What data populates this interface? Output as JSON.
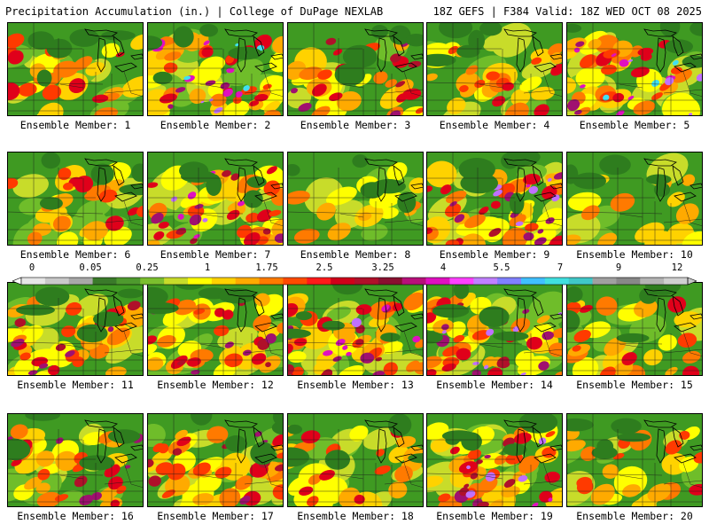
{
  "header": {
    "title": "Precipitation Accumulation (in.) | College of DuPage NEXLAB",
    "run_info": "18Z GEFS | F384 Valid: 18Z WED OCT 08 2025"
  },
  "panels": [
    {
      "label": "Ensemble Member: 1",
      "seed": 11,
      "intensity": 0.95
    },
    {
      "label": "Ensemble Member: 2",
      "seed": 23,
      "intensity": 1.55
    },
    {
      "label": "Ensemble Member: 3",
      "seed": 37,
      "intensity": 1.05
    },
    {
      "label": "Ensemble Member: 4",
      "seed": 41,
      "intensity": 0.95
    },
    {
      "label": "Ensemble Member: 5",
      "seed": 59,
      "intensity": 1.75
    },
    {
      "label": "Ensemble Member: 6",
      "seed": 61,
      "intensity": 0.9
    },
    {
      "label": "Ensemble Member: 7",
      "seed": 73,
      "intensity": 1.45
    },
    {
      "label": "Ensemble Member: 8",
      "seed": 89,
      "intensity": 0.75
    },
    {
      "label": "Ensemble Member: 9",
      "seed": 97,
      "intensity": 1.3
    },
    {
      "label": "Ensemble Member: 10",
      "seed": 103,
      "intensity": 0.7
    },
    {
      "label": "Ensemble Member: 11",
      "seed": 113,
      "intensity": 1.15
    },
    {
      "label": "Ensemble Member: 12",
      "seed": 127,
      "intensity": 1.2
    },
    {
      "label": "Ensemble Member: 13",
      "seed": 139,
      "intensity": 1.35
    },
    {
      "label": "Ensemble Member: 14",
      "seed": 149,
      "intensity": 1.4
    },
    {
      "label": "Ensemble Member: 15",
      "seed": 157,
      "intensity": 0.85
    },
    {
      "label": "Ensemble Member: 16",
      "seed": 167,
      "intensity": 1.05
    },
    {
      "label": "Ensemble Member: 17",
      "seed": 173,
      "intensity": 1.25
    },
    {
      "label": "Ensemble Member: 18",
      "seed": 181,
      "intensity": 0.9
    },
    {
      "label": "Ensemble Member: 19",
      "seed": 191,
      "intensity": 1.45
    },
    {
      "label": "Ensemble Member: 20",
      "seed": 199,
      "intensity": 0.85
    }
  ],
  "colorbar": {
    "labels": [
      "0",
      "0.05",
      "0.25",
      "1",
      "1.75",
      "2.5",
      "3.25",
      "4",
      "5.5",
      "7",
      "9",
      "12"
    ],
    "colors": [
      "#e6e6e6",
      "#c9c9c9",
      "#a8a8a8",
      "#3a7a2a",
      "#4e9a2e",
      "#7bbf2e",
      "#c8dc2a",
      "#ffff00",
      "#ffd200",
      "#ffaa00",
      "#ff7a00",
      "#ff4a00",
      "#ff1a1a",
      "#d0001a",
      "#b0102a",
      "#8a1030",
      "#b8107a",
      "#e010c0",
      "#ff40ff",
      "#c080ff",
      "#8080ff",
      "#40c0ff",
      "#40e0e0",
      "#40c8c8",
      "#a0a0a0",
      "#888888",
      "#b4b4b4",
      "#d0d0d0"
    ]
  }
}
